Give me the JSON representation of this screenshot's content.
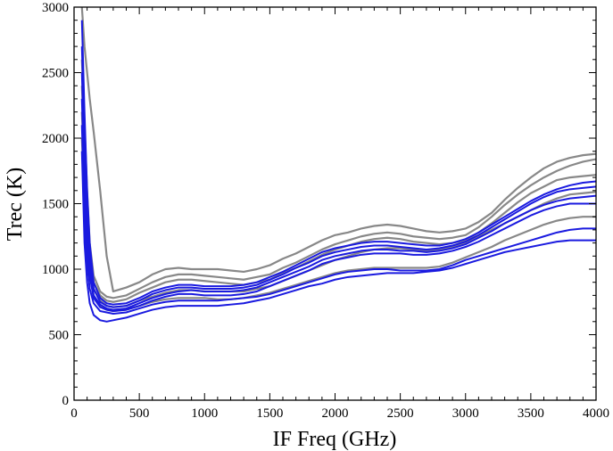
{
  "chart_data": {
    "type": "line",
    "title": "",
    "xlabel": "IF Freq (GHz)",
    "ylabel": "Trec (K)",
    "xlim": [
      0,
      4000
    ],
    "ylim": [
      0,
      3000
    ],
    "x_ticks": [
      0,
      500,
      1000,
      1500,
      2000,
      2500,
      3000,
      3500,
      4000
    ],
    "y_ticks": [
      0,
      500,
      1000,
      1500,
      2000,
      2500,
      3000
    ],
    "grid": false,
    "legend": "none",
    "colors": {
      "gray": "#888888",
      "blue": "#1a1adf"
    },
    "x": [
      60,
      80,
      100,
      120,
      150,
      200,
      250,
      300,
      400,
      500,
      600,
      700,
      800,
      900,
      1000,
      1100,
      1200,
      1300,
      1400,
      1500,
      1600,
      1700,
      1800,
      1900,
      2000,
      2100,
      2200,
      2300,
      2400,
      2500,
      2600,
      2700,
      2800,
      2900,
      3000,
      3100,
      3200,
      3300,
      3400,
      3500,
      3600,
      3700,
      3800,
      3900,
      4000
    ],
    "series": [
      {
        "color": "gray",
        "values": [
          3000,
          2700,
          2500,
          2300,
          2050,
          1600,
          1100,
          830,
          860,
          900,
          960,
          1000,
          1010,
          1000,
          1000,
          1000,
          990,
          980,
          1000,
          1030,
          1080,
          1120,
          1170,
          1220,
          1260,
          1280,
          1310,
          1330,
          1340,
          1330,
          1310,
          1290,
          1280,
          1290,
          1310,
          1360,
          1430,
          1530,
          1620,
          1700,
          1770,
          1820,
          1850,
          1870,
          1880
        ]
      },
      {
        "color": "gray",
        "values": [
          2600,
          2100,
          1600,
          1200,
          950,
          830,
          790,
          780,
          800,
          850,
          900,
          940,
          960,
          960,
          950,
          940,
          930,
          920,
          940,
          960,
          1010,
          1050,
          1100,
          1150,
          1190,
          1220,
          1250,
          1270,
          1280,
          1270,
          1250,
          1240,
          1230,
          1240,
          1260,
          1320,
          1400,
          1490,
          1570,
          1640,
          1700,
          1750,
          1790,
          1820,
          1840
        ]
      },
      {
        "color": "gray",
        "values": [
          2400,
          1900,
          1450,
          1100,
          900,
          800,
          760,
          750,
          770,
          820,
          860,
          900,
          920,
          920,
          910,
          900,
          890,
          880,
          900,
          920,
          970,
          1010,
          1060,
          1110,
          1150,
          1180,
          1210,
          1230,
          1240,
          1230,
          1210,
          1200,
          1190,
          1200,
          1220,
          1280,
          1350,
          1430,
          1510,
          1580,
          1630,
          1680,
          1700,
          1710,
          1720
        ]
      },
      {
        "color": "gray",
        "values": [
          2200,
          1700,
          1300,
          1000,
          850,
          760,
          720,
          710,
          720,
          760,
          790,
          820,
          840,
          840,
          830,
          830,
          830,
          830,
          850,
          870,
          910,
          950,
          990,
          1030,
          1070,
          1100,
          1130,
          1150,
          1160,
          1160,
          1150,
          1140,
          1150,
          1170,
          1200,
          1250,
          1300,
          1350,
          1400,
          1450,
          1500,
          1540,
          1570,
          1580,
          1590
        ]
      },
      {
        "color": "gray",
        "values": [
          2000,
          1500,
          1200,
          950,
          800,
          720,
          690,
          680,
          690,
          720,
          750,
          770,
          780,
          780,
          780,
          770,
          770,
          780,
          800,
          820,
          850,
          880,
          910,
          940,
          970,
          990,
          1000,
          1010,
          1010,
          1010,
          1010,
          1010,
          1020,
          1050,
          1090,
          1130,
          1170,
          1220,
          1260,
          1300,
          1340,
          1370,
          1390,
          1400,
          1400
        ]
      },
      {
        "color": "blue",
        "values": [
          2900,
          2200,
          1600,
          1200,
          900,
          780,
          740,
          730,
          740,
          780,
          830,
          860,
          880,
          880,
          870,
          870,
          870,
          880,
          900,
          940,
          980,
          1030,
          1080,
          1130,
          1160,
          1180,
          1200,
          1210,
          1210,
          1200,
          1190,
          1180,
          1180,
          1200,
          1230,
          1280,
          1340,
          1400,
          1460,
          1520,
          1570,
          1610,
          1640,
          1660,
          1670
        ]
      },
      {
        "color": "blue",
        "values": [
          2700,
          2000,
          1500,
          1100,
          850,
          750,
          720,
          710,
          720,
          760,
          810,
          840,
          860,
          860,
          850,
          850,
          850,
          860,
          880,
          920,
          960,
          1010,
          1050,
          1100,
          1130,
          1150,
          1170,
          1180,
          1180,
          1170,
          1160,
          1150,
          1160,
          1180,
          1210,
          1260,
          1320,
          1380,
          1440,
          1500,
          1550,
          1590,
          1610,
          1620,
          1630
        ]
      },
      {
        "color": "blue",
        "values": [
          2500,
          1800,
          1350,
          1000,
          800,
          730,
          700,
          690,
          700,
          740,
          780,
          810,
          830,
          840,
          830,
          830,
          830,
          840,
          860,
          900,
          940,
          980,
          1020,
          1070,
          1100,
          1120,
          1140,
          1150,
          1150,
          1140,
          1140,
          1130,
          1140,
          1160,
          1190,
          1240,
          1290,
          1350,
          1400,
          1450,
          1490,
          1520,
          1540,
          1550,
          1560
        ]
      },
      {
        "color": "blue",
        "values": [
          2300,
          1600,
          1200,
          950,
          780,
          710,
          690,
          680,
          690,
          720,
          760,
          790,
          810,
          810,
          800,
          800,
          800,
          810,
          830,
          870,
          910,
          950,
          990,
          1040,
          1070,
          1090,
          1110,
          1120,
          1120,
          1120,
          1110,
          1110,
          1120,
          1140,
          1170,
          1210,
          1260,
          1310,
          1360,
          1410,
          1450,
          1480,
          1500,
          1500,
          1500
        ]
      },
      {
        "color": "blue",
        "values": [
          2100,
          1400,
          1050,
          850,
          740,
          680,
          670,
          660,
          670,
          700,
          730,
          750,
          760,
          760,
          760,
          760,
          770,
          780,
          790,
          810,
          840,
          870,
          900,
          930,
          960,
          980,
          990,
          1000,
          1000,
          990,
          990,
          990,
          1000,
          1030,
          1070,
          1100,
          1130,
          1160,
          1190,
          1220,
          1250,
          1280,
          1300,
          1310,
          1310
        ]
      },
      {
        "color": "blue",
        "values": [
          1900,
          1200,
          900,
          740,
          650,
          610,
          600,
          610,
          630,
          660,
          690,
          710,
          720,
          720,
          720,
          720,
          730,
          740,
          760,
          780,
          810,
          840,
          870,
          890,
          920,
          940,
          950,
          960,
          970,
          970,
          970,
          980,
          990,
          1010,
          1040,
          1070,
          1100,
          1130,
          1150,
          1170,
          1190,
          1210,
          1220,
          1220,
          1220
        ]
      }
    ]
  }
}
